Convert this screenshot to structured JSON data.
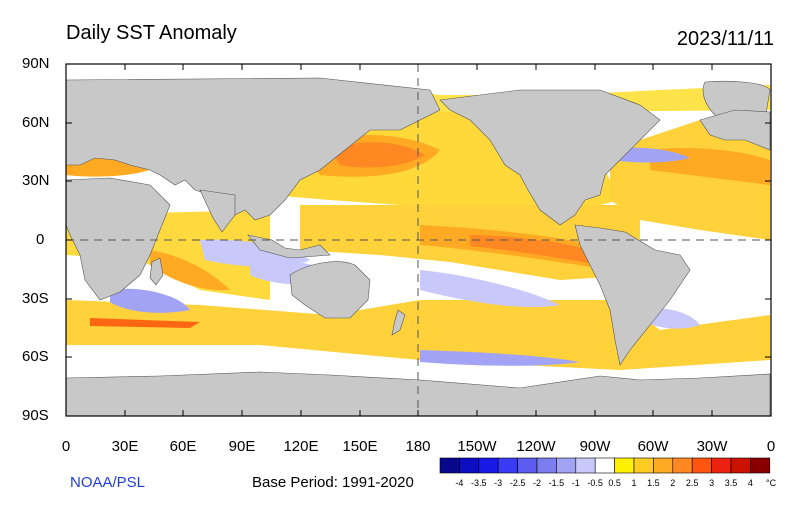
{
  "title": "Daily SST Anomaly",
  "date": "2023/11/11",
  "credit": "NOAA/PSL",
  "base_period": "Base Period: 1991-2020",
  "map": {
    "projection": "equirectangular",
    "central_longitude": 180,
    "land_color": "#c8c8c8",
    "ocean_no_anomaly_color": "#ffffff",
    "lat_labels": [
      "90N",
      "60N",
      "30N",
      "0",
      "30S",
      "60S",
      "90S"
    ],
    "lon_labels": [
      "0",
      "30E",
      "60E",
      "90E",
      "120E",
      "150E",
      "180",
      "150W",
      "120W",
      "90W",
      "60W",
      "30W",
      "0"
    ],
    "dashed_lines": [
      "equator",
      "dateline"
    ]
  },
  "colorbar": {
    "unit": "°C",
    "tick_labels": [
      "-4",
      "-3.5",
      "-3",
      "-2.5",
      "-2",
      "-1.5",
      "-1",
      "-0.5",
      "0.5",
      "1",
      "1.5",
      "2",
      "2.5",
      "3",
      "3.5",
      "4"
    ],
    "colors": [
      "#08088c",
      "#0d0dc2",
      "#1a1ae8",
      "#3b3bf5",
      "#5c5cf2",
      "#7d7df0",
      "#a3a3f5",
      "#c8c8fa",
      "#ffffff",
      "#ffef00",
      "#ffcc22",
      "#ffaa22",
      "#ff8822",
      "#ff5511",
      "#ee2211",
      "#cc1100",
      "#8a0000"
    ]
  }
}
